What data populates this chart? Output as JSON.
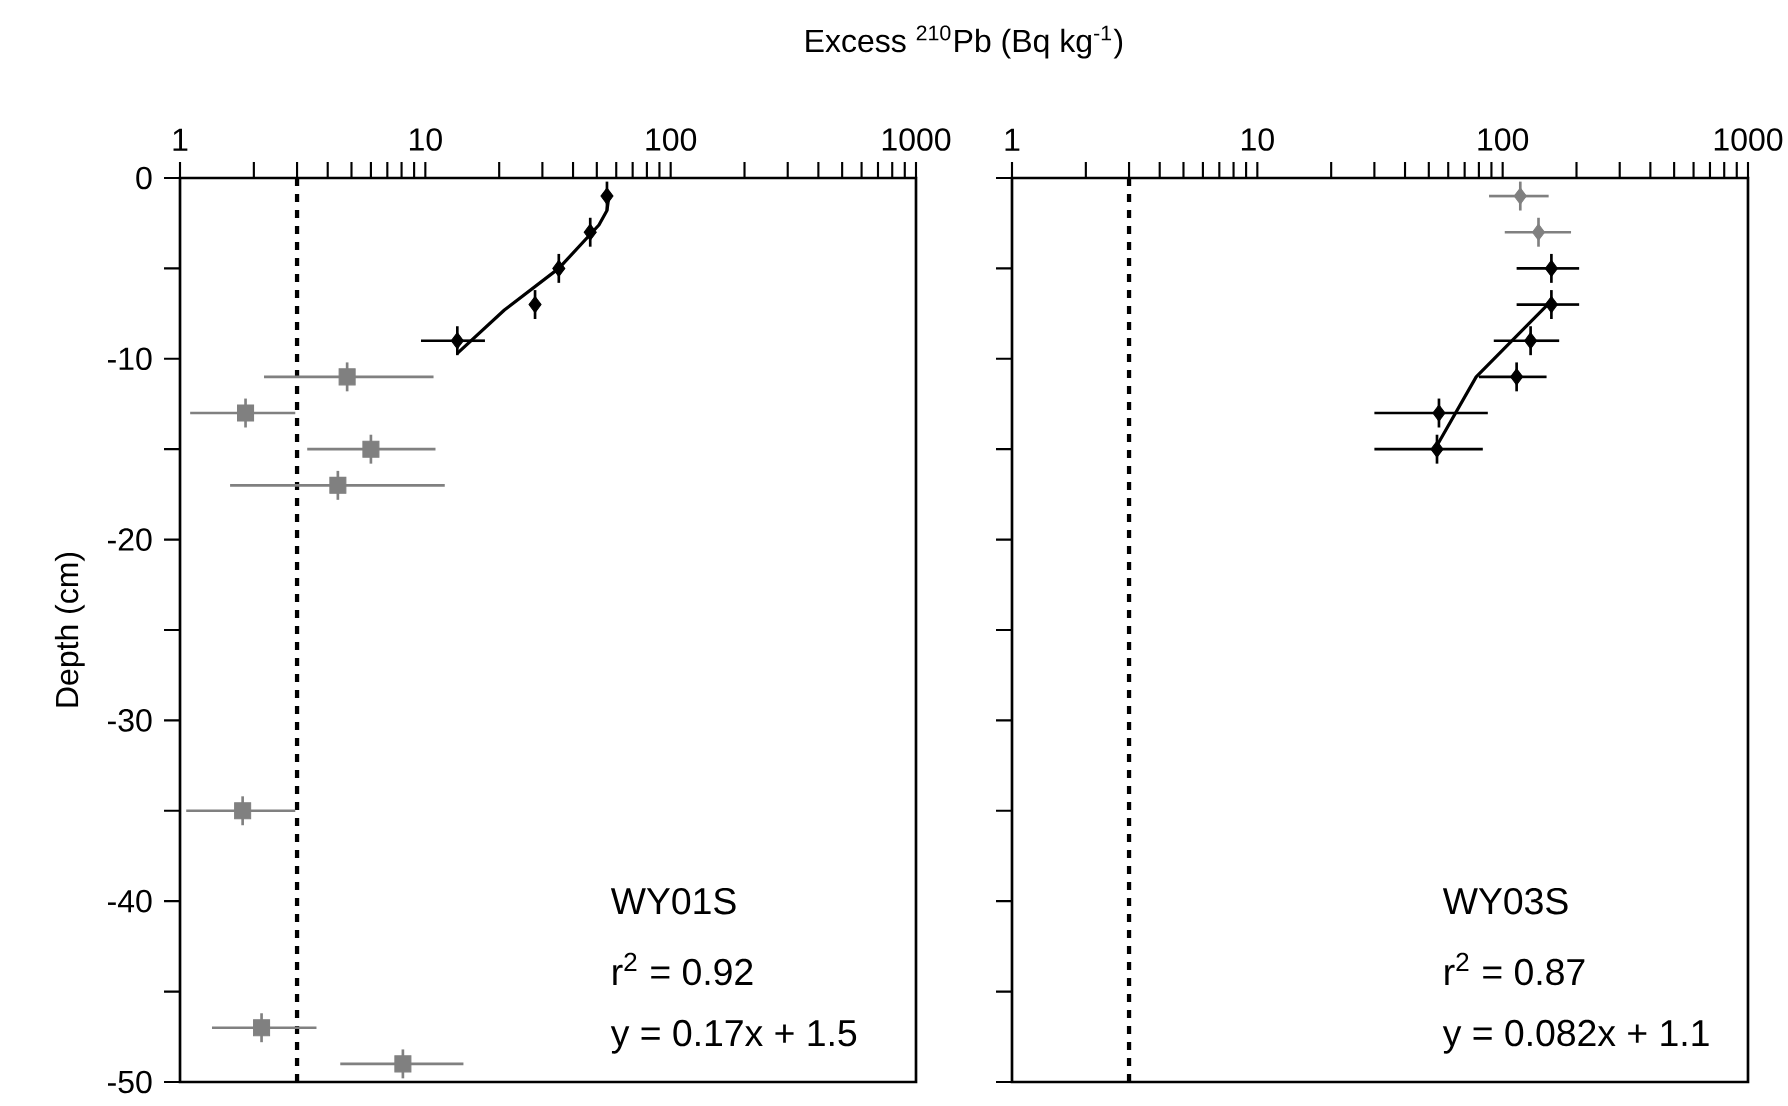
{
  "chart_data": [
    {
      "type": "scatter",
      "title": "Excess $^{210}$Pb (Bq kg$^{-1}$)",
      "ylabel": "Depth (cm)",
      "log": "x",
      "xlim": [
        1,
        1000
      ],
      "ylim": [
        -50,
        0
      ],
      "xticks": [
        1,
        {
          "value": 2,
          "label": null
        },
        {
          "value": 3,
          "label": null
        },
        {
          "value": 4,
          "label": null
        },
        {
          "value": 5,
          "label": null
        },
        {
          "value": 6,
          "label": null
        },
        {
          "value": 7,
          "label": null
        },
        {
          "value": 8,
          "label": null
        },
        {
          "value": 9,
          "label": null
        },
        10,
        {
          "value": 20,
          "label": null
        },
        {
          "value": 30,
          "label": null
        },
        {
          "value": 40,
          "label": null
        },
        {
          "value": 50,
          "label": null
        },
        {
          "value": 60,
          "label": null
        },
        {
          "value": 70,
          "label": null
        },
        {
          "value": 80,
          "label": null
        },
        {
          "value": 90,
          "label": null
        },
        100,
        {
          "value": 200,
          "label": null
        },
        {
          "value": 300,
          "label": null
        },
        {
          "value": 400,
          "label": null
        },
        {
          "value": 500,
          "label": null
        },
        {
          "value": 600,
          "label": null
        },
        {
          "value": 700,
          "label": null
        },
        {
          "value": 800,
          "label": null
        },
        {
          "value": 900,
          "label": null
        },
        1000
      ],
      "yticks": [
        0,
        {
          "value": -5,
          "label": null
        },
        -10,
        {
          "value": -15,
          "label": null
        },
        -20,
        {
          "value": -25,
          "label": null
        },
        -30,
        {
          "value": -35,
          "label": null
        },
        -40,
        {
          "value": -45,
          "label": null
        },
        -50
      ],
      "series": [
        {
          "marker": "square",
          "color": "#808080",
          "x": [
            4.8,
            1.85,
            6.0,
            4.4,
            1.8,
            2.15,
            8.1
          ],
          "values": [
            -11,
            -13,
            -15,
            -17,
            -35,
            -47,
            -49
          ],
          "errors": [
            0.8,
            0.8,
            0.8,
            0.8,
            0.8,
            0.8,
            0.8
          ],
          "xerrors": [
            [
              2.2,
              10.8
            ],
            [
              1.1,
              2.95
            ],
            [
              3.3,
              11.0
            ],
            [
              1.6,
              12.0
            ],
            [
              1.06,
              2.95
            ],
            [
              1.35,
              3.6
            ],
            [
              4.5,
              14.3
            ]
          ]
        },
        {
          "marker": "diamond",
          "color": "#000000",
          "x": [
            55,
            47,
            35,
            28,
            13.5
          ],
          "values": [
            -1,
            -3,
            -5,
            -7,
            -9
          ],
          "errors": [
            0.8,
            0.8,
            0.8,
            0.8,
            0.8
          ],
          "xerrors": [
            null,
            null,
            null,
            null,
            [
              9.6,
              17.5
            ]
          ]
        },
        {
          "type": "line",
          "marker": "none",
          "color": "#000000",
          "x": [
            13.5,
            21,
            35,
            51,
            55,
            56
          ],
          "values": [
            -9.7,
            -7.3,
            -5,
            -2.6,
            -1.8,
            -1
          ]
        }
      ],
      "ref_lines": [
        {
          "axis": "x",
          "value": 3,
          "line_style": "dashed",
          "color": "#000000"
        }
      ],
      "annotations": [
        "WY01S",
        "r$^{2}$ = 0.92",
        "y = 0.17x + 1.5"
      ]
    },
    {
      "type": "scatter",
      "log": "x",
      "xlim": [
        1,
        1000
      ],
      "ylim": [
        -50,
        0
      ],
      "tick_labels": "x",
      "xticks": [
        1,
        {
          "value": 2,
          "label": null
        },
        {
          "value": 3,
          "label": null
        },
        {
          "value": 4,
          "label": null
        },
        {
          "value": 5,
          "label": null
        },
        {
          "value": 6,
          "label": null
        },
        {
          "value": 7,
          "label": null
        },
        {
          "value": 8,
          "label": null
        },
        {
          "value": 9,
          "label": null
        },
        10,
        {
          "value": 20,
          "label": null
        },
        {
          "value": 30,
          "label": null
        },
        {
          "value": 40,
          "label": null
        },
        {
          "value": 50,
          "label": null
        },
        {
          "value": 60,
          "label": null
        },
        {
          "value": 70,
          "label": null
        },
        {
          "value": 80,
          "label": null
        },
        {
          "value": 90,
          "label": null
        },
        100,
        {
          "value": 200,
          "label": null
        },
        {
          "value": 300,
          "label": null
        },
        {
          "value": 400,
          "label": null
        },
        {
          "value": 500,
          "label": null
        },
        {
          "value": 600,
          "label": null
        },
        {
          "value": 700,
          "label": null
        },
        {
          "value": 800,
          "label": null
        },
        {
          "value": 900,
          "label": null
        },
        1000
      ],
      "yticks": [
        0,
        {
          "value": -5,
          "label": null
        },
        -10,
        {
          "value": -15,
          "label": null
        },
        -20,
        {
          "value": -25,
          "label": null
        },
        -30,
        {
          "value": -35,
          "label": null
        },
        -40,
        {
          "value": -45,
          "label": null
        },
        -50
      ],
      "series": [
        {
          "marker": "diamond",
          "color": "#808080",
          "x": [
            118,
            140
          ],
          "values": [
            -1,
            -3
          ],
          "errors": [
            0.8,
            0.8
          ],
          "xerrors": [
            [
              88,
              154
            ],
            [
              102,
              190
            ]
          ]
        },
        {
          "marker": "diamond",
          "color": "#000000",
          "x": [
            158,
            158,
            130,
            114,
            55,
            54
          ],
          "values": [
            -5,
            -7,
            -9,
            -11,
            -13,
            -15
          ],
          "errors": [
            0.8,
            0.8,
            0.8,
            0.8,
            0.8,
            0.8
          ],
          "xerrors": [
            [
              114,
              205
            ],
            [
              114,
              205
            ],
            [
              92,
              170
            ],
            [
              80,
              151
            ],
            [
              30,
              87
            ],
            [
              30,
              83
            ]
          ]
        },
        {
          "type": "line",
          "marker": "none",
          "color": "#000000",
          "x": [
            54,
            78,
            158
          ],
          "values": [
            -14.8,
            -11,
            -6.8
          ]
        }
      ],
      "ref_lines": [
        {
          "axis": "x",
          "value": 3,
          "line_style": "dashed",
          "color": "#000000"
        }
      ],
      "annotations": [
        "WY03S",
        "r$^{2}$ = 0.87",
        "y = 0.082x + 1.1"
      ]
    }
  ]
}
